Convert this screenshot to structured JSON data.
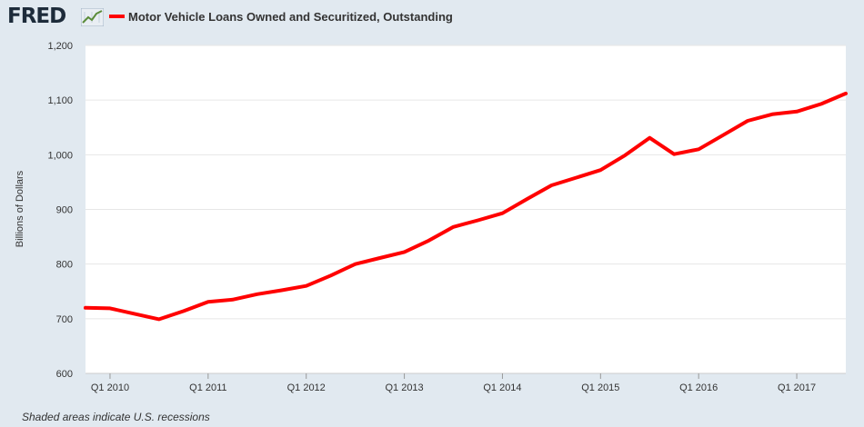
{
  "header": {
    "logo_text": "FRED",
    "logo_icon": "line-chart-icon",
    "legend_label": "Motor Vehicle Loans Owned and Securitized, Outstanding",
    "legend_color": "#ff0000"
  },
  "footnote": "Shaded areas indicate U.S. recessions",
  "chart_data": {
    "type": "line",
    "ylabel": "Billions of Dollars",
    "xlabel": "",
    "ylim": [
      600,
      1200
    ],
    "yticks": [
      600,
      700,
      800,
      900,
      1000,
      1100,
      1200
    ],
    "ytick_labels": [
      "600",
      "700",
      "800",
      "900",
      "1,000",
      "1,100",
      "1,200"
    ],
    "xticks": [
      "Q1 2010",
      "Q1 2011",
      "Q1 2012",
      "Q1 2013",
      "Q1 2014",
      "Q1 2015",
      "Q1 2016",
      "Q1 2017"
    ],
    "grid": true,
    "series": [
      {
        "name": "Motor Vehicle Loans Owned and Securitized, Outstanding",
        "color": "#ff0000",
        "x": [
          "Q4 2009",
          "Q1 2010",
          "Q2 2010",
          "Q3 2010",
          "Q4 2010",
          "Q1 2011",
          "Q2 2011",
          "Q3 2011",
          "Q4 2011",
          "Q1 2012",
          "Q2 2012",
          "Q3 2012",
          "Q4 2012",
          "Q1 2013",
          "Q2 2013",
          "Q3 2013",
          "Q4 2013",
          "Q1 2014",
          "Q2 2014",
          "Q3 2014",
          "Q4 2014",
          "Q1 2015",
          "Q2 2015",
          "Q3 2015",
          "Q4 2015",
          "Q1 2016",
          "Q2 2016",
          "Q3 2016",
          "Q4 2016",
          "Q1 2017",
          "Q2 2017",
          "Q3 2017"
        ],
        "values": [
          720,
          719,
          709,
          699,
          714,
          731,
          735,
          745,
          752,
          760,
          779,
          800,
          811,
          822,
          843,
          868,
          880,
          893,
          919,
          944,
          958,
          972,
          999,
          1031,
          1001,
          1010,
          1036,
          1062,
          1074,
          1079,
          1093,
          1112
        ]
      }
    ]
  }
}
